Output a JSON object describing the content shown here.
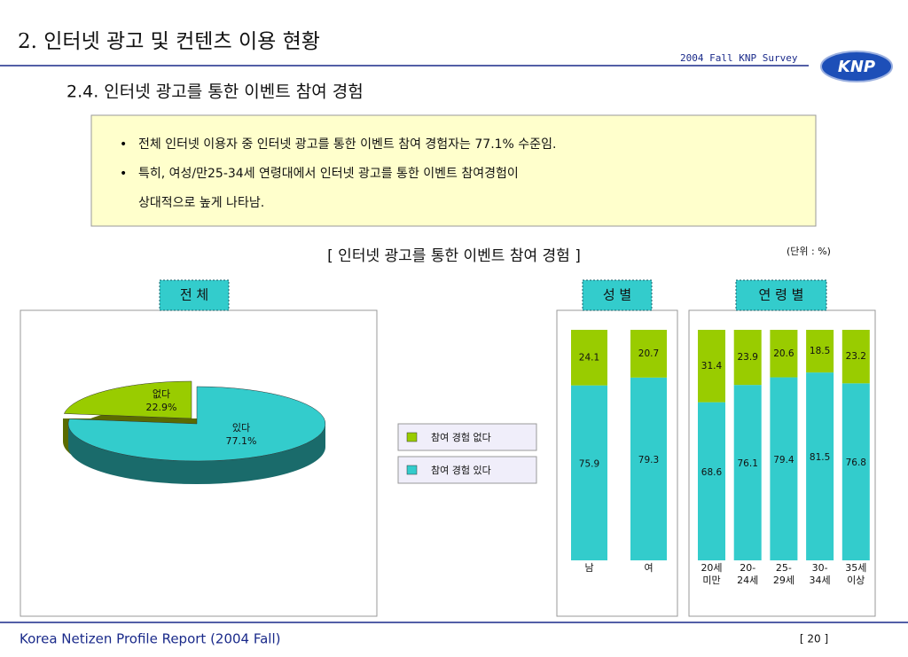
{
  "header": {
    "title": "2. 인터넷 광고 및 컨텐츠 이용 현황",
    "survey": "2004 Fall KNP Survey",
    "logo": "KNP"
  },
  "section_title": "2.4.  인터넷 광고를 통한 이벤트 참여 경험",
  "summary": [
    {
      "lines": [
        "전체 인터넷 이용자 중 인터넷 광고를 통한 이벤트 참여 경험자는 77.1% 수준임."
      ]
    },
    {
      "lines": [
        "특히, 여성/만25-34세 연령대에서 인터넷 광고를 통한 이벤트 참여경험이",
        "상대적으로 높게 나타남."
      ]
    }
  ],
  "chart_heading": "[ 인터넷 광고를 통한 이벤트 참여 경험 ]",
  "unit": "(단위 : %)",
  "footer": {
    "report": "Korea Netizen Profile Report (2004 Fall)",
    "page": "[ 20 ]"
  },
  "chart_data": [
    {
      "type": "pie",
      "title": "전 체",
      "categories": [
        "없다",
        "있다"
      ],
      "values": [
        22.9,
        77.1
      ],
      "value_labels": [
        "22.9%",
        "77.1%"
      ],
      "colors": [
        "#99cc00",
        "#33cccc"
      ]
    },
    {
      "type": "stacked_bar",
      "title": "성 별",
      "categories": [
        "남",
        "여"
      ],
      "ylim": [
        0,
        100
      ],
      "series": [
        {
          "name": "참여 경험 있다",
          "color": "#33cccc",
          "values": [
            75.9,
            79.3
          ]
        },
        {
          "name": "참여 경험 없다",
          "color": "#99cc00",
          "values": [
            24.1,
            20.7
          ]
        }
      ]
    },
    {
      "type": "stacked_bar",
      "title": "연 령 별",
      "categories": [
        "20세\n미만",
        "20-\n24세",
        "25-\n29세",
        "30-\n34세",
        "35세\n이상"
      ],
      "ylim": [
        0,
        100
      ],
      "series": [
        {
          "color": "#33cccc",
          "values": [
            68.6,
            76.1,
            79.4,
            81.5,
            76.8
          ]
        },
        {
          "color": "#99cc00",
          "values": [
            31.4,
            23.9,
            20.6,
            18.5,
            23.2
          ]
        }
      ]
    }
  ]
}
